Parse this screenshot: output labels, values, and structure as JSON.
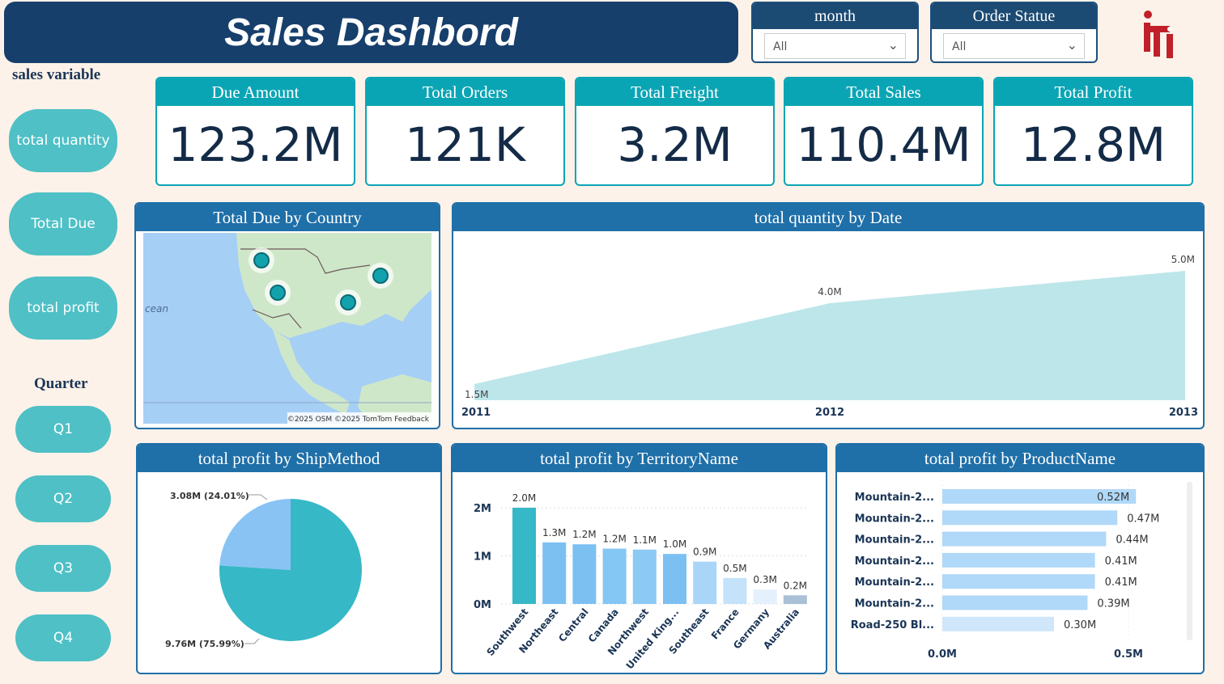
{
  "header": {
    "title": "Sales Dashbord"
  },
  "slicers": [
    {
      "label": "month",
      "value": "All"
    },
    {
      "label": "Order Statue",
      "value": "All"
    }
  ],
  "logo": {
    "text": "iti",
    "color": "#c0202a"
  },
  "sidebar": {
    "heading": "sales variable",
    "buttons": [
      "total quantity",
      "Total Due",
      "total profit"
    ],
    "quarter_heading": "Quarter",
    "quarters": [
      "Q1",
      "Q2",
      "Q3",
      "Q4"
    ]
  },
  "kpis": [
    {
      "label": "Due Amount",
      "value": "123.2M"
    },
    {
      "label": "Total Orders",
      "value": "121K"
    },
    {
      "label": "Total Freight",
      "value": "3.2M"
    },
    {
      "label": "Total Sales",
      "value": "110.4M"
    },
    {
      "label": "Total Profit",
      "value": "12.8M"
    }
  ],
  "map": {
    "title": "Total Due by Country",
    "ocean_label": "cean",
    "attribution": "©2025 OSM ©2025 TomTom Feedback"
  },
  "colors": {
    "navy": "#173f6b",
    "teal": "#0aa5b5",
    "panel": "#1f6fa8",
    "accent": "#36b8c6",
    "light": "#89c3f4"
  },
  "chart_data": [
    {
      "type": "area",
      "title": "total quantity by Date",
      "x": [
        "2011",
        "2012",
        "2013"
      ],
      "values": [
        1.5,
        4.0,
        5.0
      ],
      "labels": [
        "1.5M",
        "4.0M",
        "5.0M"
      ],
      "ylim": [
        1.0,
        5.0
      ]
    },
    {
      "type": "pie",
      "title": "total profit by ShipMethod",
      "slices": [
        {
          "value": 3.08,
          "label": "3.08M (24.01%)",
          "color": "#89c3f4"
        },
        {
          "value": 9.76,
          "label": "9.76M (75.99%)",
          "color": "#36b8c6"
        }
      ]
    },
    {
      "type": "bar",
      "title": "total profit by TerritoryName",
      "categories": [
        "Southwest",
        "Northeast",
        "Central",
        "Canada",
        "Northwest",
        "United King...",
        "Southeast",
        "France",
        "Germany",
        "Australia"
      ],
      "values": [
        2.0,
        1.28,
        1.24,
        1.15,
        1.13,
        1.04,
        0.88,
        0.54,
        0.3,
        0.18
      ],
      "labels": [
        "2.0M",
        "1.3M",
        "1.2M",
        "1.2M",
        "1.1M",
        "1.0M",
        "0.9M",
        "0.5M",
        "0.3M",
        "0.2M"
      ],
      "yticks": [
        "0M",
        "1M",
        "2M"
      ],
      "ylim": [
        0,
        2
      ]
    },
    {
      "type": "bar",
      "orientation": "horizontal",
      "title": "total profit by ProductName",
      "categories": [
        "Mountain-2...",
        "Mountain-2...",
        "Mountain-2...",
        "Mountain-2...",
        "Mountain-2...",
        "Mountain-2...",
        "Road-250 Bl..."
      ],
      "values": [
        0.52,
        0.47,
        0.44,
        0.41,
        0.41,
        0.39,
        0.3
      ],
      "labels": [
        "0.52M",
        "0.47M",
        "0.44M",
        "0.41M",
        "0.41M",
        "0.39M",
        "0.30M"
      ],
      "xticks": [
        "0.0M",
        "0.5M"
      ],
      "xlim": [
        0,
        0.5
      ]
    }
  ]
}
